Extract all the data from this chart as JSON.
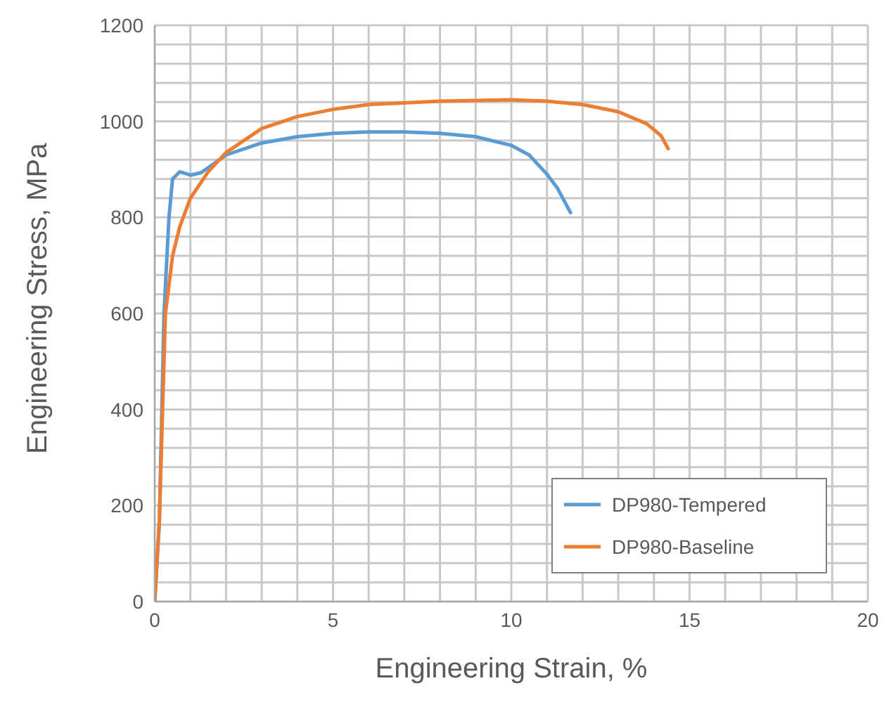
{
  "chart_data": {
    "type": "line",
    "xlabel": "Engineering Strain, %",
    "ylabel": "Engineering Stress, MPa",
    "xlim": [
      0,
      20
    ],
    "ylim": [
      0,
      1200
    ],
    "xticks": [
      0,
      {
        "value": 1,
        "label": null
      },
      {
        "value": 2,
        "label": null
      },
      {
        "value": 3,
        "label": null
      },
      {
        "value": 4,
        "label": null
      },
      5,
      {
        "value": 6,
        "label": null
      },
      {
        "value": 7,
        "label": null
      },
      {
        "value": 8,
        "label": null
      },
      {
        "value": 9,
        "label": null
      },
      10,
      {
        "value": 11,
        "label": null
      },
      {
        "value": 12,
        "label": null
      },
      {
        "value": 13,
        "label": null
      },
      {
        "value": 14,
        "label": null
      },
      15,
      {
        "value": 16,
        "label": null
      },
      {
        "value": 17,
        "label": null
      },
      {
        "value": 18,
        "label": null
      },
      {
        "value": 19,
        "label": null
      },
      20
    ],
    "yticks": [
      0,
      {
        "value": 40,
        "label": null
      },
      {
        "value": 80,
        "label": null
      },
      {
        "value": 120,
        "label": null
      },
      {
        "value": 160,
        "label": null
      },
      200,
      {
        "value": 240,
        "label": null
      },
      {
        "value": 280,
        "label": null
      },
      {
        "value": 320,
        "label": null
      },
      {
        "value": 360,
        "label": null
      },
      400,
      {
        "value": 440,
        "label": null
      },
      {
        "value": 480,
        "label": null
      },
      {
        "value": 520,
        "label": null
      },
      {
        "value": 560,
        "label": null
      },
      600,
      {
        "value": 640,
        "label": null
      },
      {
        "value": 680,
        "label": null
      },
      {
        "value": 720,
        "label": null
      },
      {
        "value": 760,
        "label": null
      },
      800,
      {
        "value": 840,
        "label": null
      },
      {
        "value": 880,
        "label": null
      },
      {
        "value": 920,
        "label": null
      },
      {
        "value": 960,
        "label": null
      },
      1000,
      {
        "value": 1040,
        "label": null
      },
      {
        "value": 1080,
        "label": null
      },
      {
        "value": 1120,
        "label": null
      },
      {
        "value": 1160,
        "label": null
      },
      1200
    ],
    "grid": true,
    "legend": "bottom right",
    "marker": "none",
    "line_style": "solid",
    "series": [
      {
        "name": "DP980-Tempered",
        "color": "#5b9bd5",
        "x": [
          0,
          0.13,
          0.26,
          0.4,
          0.5,
          0.7,
          1.0,
          1.3,
          2,
          3,
          4,
          5,
          6,
          7,
          8,
          9,
          10,
          10.5,
          11,
          11.3,
          11.66
        ],
        "values": [
          0,
          165,
          600,
          800,
          880,
          895,
          888,
          893,
          930,
          955,
          968,
          975,
          978,
          978,
          975,
          968,
          950,
          930,
          890,
          860,
          810
        ]
      },
      {
        "name": "DP980-Baseline",
        "color": "#ed7d31",
        "x": [
          0,
          0.13,
          0.3,
          0.5,
          0.7,
          1,
          1.5,
          2,
          3,
          4,
          5,
          6,
          8,
          10,
          11,
          12,
          13,
          13.8,
          14.2,
          14.4
        ],
        "values": [
          0,
          170,
          600,
          720,
          780,
          840,
          895,
          935,
          985,
          1010,
          1025,
          1035,
          1042,
          1045,
          1042,
          1035,
          1020,
          995,
          970,
          943
        ]
      }
    ]
  }
}
